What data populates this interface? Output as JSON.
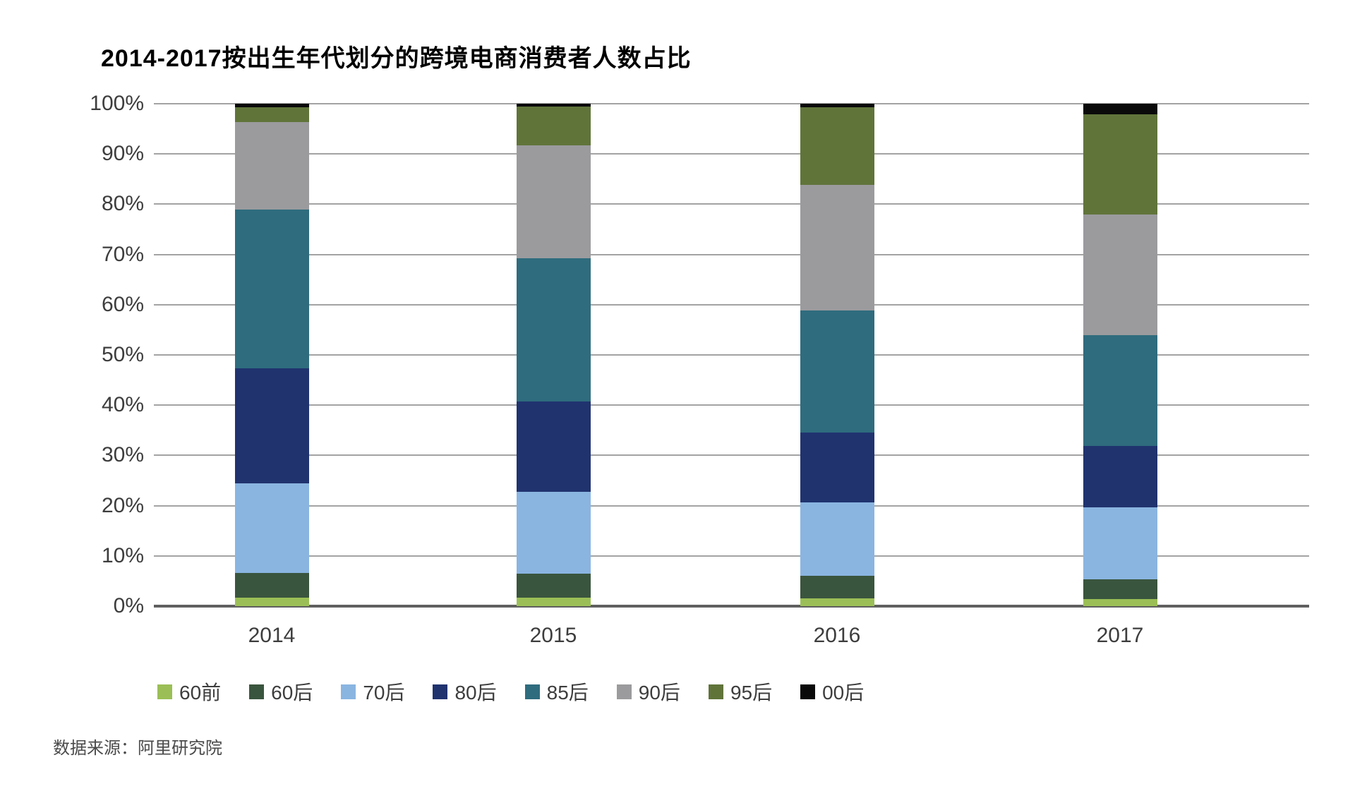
{
  "header": {
    "title": "2014-2017按出生年代划分的跨境电商消费者人数占比"
  },
  "footer": {
    "source": "数据来源：阿里研究院"
  },
  "chart_data": {
    "type": "bar",
    "subtype": "stacked-percent-column",
    "title": "2014-2017按出生年代划分的跨境电商消费者人数占比",
    "xlabel": "",
    "ylabel": "",
    "categories": [
      "2014",
      "2015",
      "2016",
      "2017"
    ],
    "series": [
      {
        "name": "60前",
        "color": "#9bbf56",
        "values": [
          1.7,
          1.7,
          1.5,
          1.4
        ]
      },
      {
        "name": "60后",
        "color": "#3a553e",
        "values": [
          4.9,
          4.8,
          4.5,
          4.0
        ]
      },
      {
        "name": "70后",
        "color": "#8ab5e1",
        "values": [
          17.9,
          16.2,
          14.7,
          14.3
        ]
      },
      {
        "name": "80后",
        "color": "#20336f",
        "values": [
          22.9,
          18.1,
          13.8,
          12.2
        ]
      },
      {
        "name": "85后",
        "color": "#2f6c7e",
        "values": [
          31.5,
          28.5,
          24.3,
          22.1
        ]
      },
      {
        "name": "90后",
        "color": "#9b9b9e",
        "values": [
          17.5,
          22.4,
          25.1,
          24.0
        ]
      },
      {
        "name": "95后",
        "color": "#60743a",
        "values": [
          2.9,
          7.8,
          15.4,
          19.9
        ]
      },
      {
        "name": "00后",
        "color": "#0a0a0a",
        "values": [
          0.7,
          0.5,
          0.7,
          2.1
        ]
      }
    ],
    "ylim": [
      0,
      100
    ],
    "ytick_labels": [
      "0%",
      "10%",
      "20%",
      "30%",
      "40%",
      "50%",
      "60%",
      "70%",
      "80%",
      "90%",
      "100%"
    ],
    "ytick_values": [
      0,
      10,
      20,
      30,
      40,
      50,
      60,
      70,
      80,
      90,
      100
    ],
    "grid": true,
    "gridline_color": "#a3a3a3",
    "axis_line_color": "#5f5f5f",
    "legend_position": "bottom",
    "source": "数据来源：阿里研究院"
  }
}
